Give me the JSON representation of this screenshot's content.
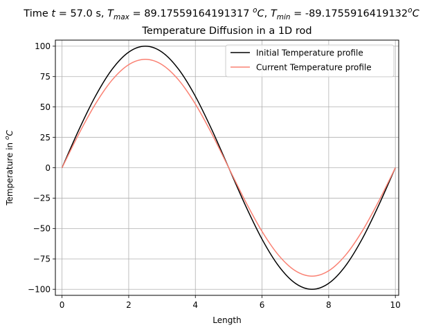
{
  "chart_data": {
    "type": "line",
    "suptitle": {
      "prefix": "Time ",
      "t_symbol": "t",
      "t_value": " = 57.0 s, ",
      "tmax_symbol": "T",
      "tmax_sub": "max",
      "tmax_value": " = 89.17559164191317 ",
      "tmin_sep": ", ",
      "tmin_symbol": "T",
      "tmin_sub": "min",
      "tmin_value": " = -89.1755916419132",
      "unit_sup": "o",
      "unit_letter": "C"
    },
    "title": "Temperature Diffusion in a 1D rod",
    "xlabel": "Length",
    "ylabel": {
      "prefix": "Temperature in ",
      "unit_sup": "o",
      "unit_letter": "C"
    },
    "xlim": [
      -0.2,
      10.1
    ],
    "ylim": [
      -105,
      105
    ],
    "xticks": [
      0,
      2,
      4,
      6,
      8,
      10
    ],
    "yticks": [
      -100,
      -75,
      -50,
      -25,
      0,
      25,
      50,
      75,
      100
    ],
    "grid": true,
    "legend_position": "top-right",
    "series": [
      {
        "name": "Initial Temperature profile",
        "color": "#000000",
        "x": [
          0,
          0.5,
          1,
          1.5,
          2,
          2.5,
          3,
          3.5,
          4,
          4.5,
          5,
          5.5,
          6,
          6.5,
          7,
          7.5,
          8,
          8.5,
          9,
          9.5,
          10
        ],
        "y": [
          0,
          30.9,
          58.8,
          80.9,
          95.1,
          100,
          95.1,
          80.9,
          58.8,
          30.9,
          0,
          -30.9,
          -58.8,
          -80.9,
          -95.1,
          -100,
          -95.1,
          -80.9,
          -58.8,
          -30.9,
          0
        ]
      },
      {
        "name": "Current Temperature profile",
        "color": "#fa8072",
        "x": [
          0,
          0.5,
          1,
          1.5,
          2,
          2.5,
          3,
          3.5,
          4,
          4.5,
          5,
          5.5,
          6,
          6.5,
          7,
          7.5,
          8,
          8.5,
          9,
          9.5,
          10
        ],
        "y": [
          0,
          27.6,
          52.4,
          72.1,
          84.8,
          89.2,
          84.8,
          72.1,
          52.4,
          27.6,
          0,
          -27.6,
          -52.4,
          -72.1,
          -84.8,
          -89.2,
          -84.8,
          -72.1,
          -52.4,
          -27.6,
          0
        ]
      }
    ]
  }
}
